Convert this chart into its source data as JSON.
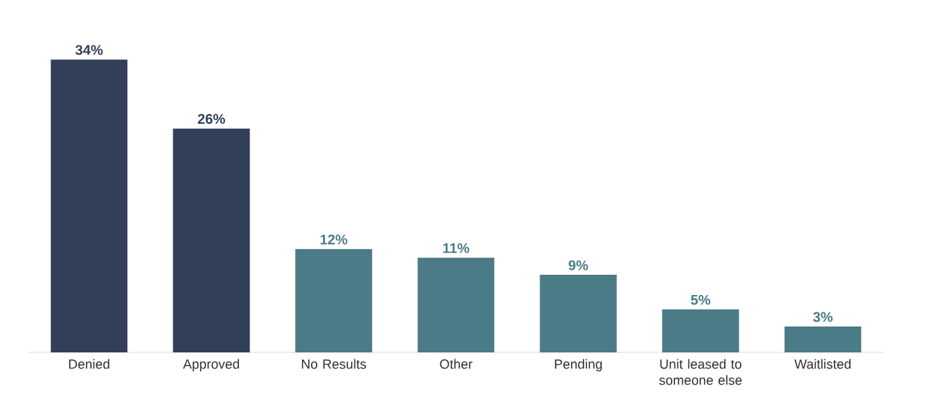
{
  "chart_data": {
    "type": "bar",
    "categories": [
      "Denied",
      "Approved",
      "No Results",
      "Other",
      "Pending",
      "Unit leased to someone else",
      "Waitlisted"
    ],
    "values": [
      34,
      26,
      12,
      11,
      9,
      5,
      3
    ],
    "colors": [
      "#333f58",
      "#333f58",
      "#4b7b86",
      "#4b7b86",
      "#4b7b86",
      "#4b7b86",
      "#4b7b86"
    ],
    "value_labels": [
      "34%",
      "26%",
      "12%",
      "11%",
      "9%",
      "5%",
      "3%"
    ]
  }
}
